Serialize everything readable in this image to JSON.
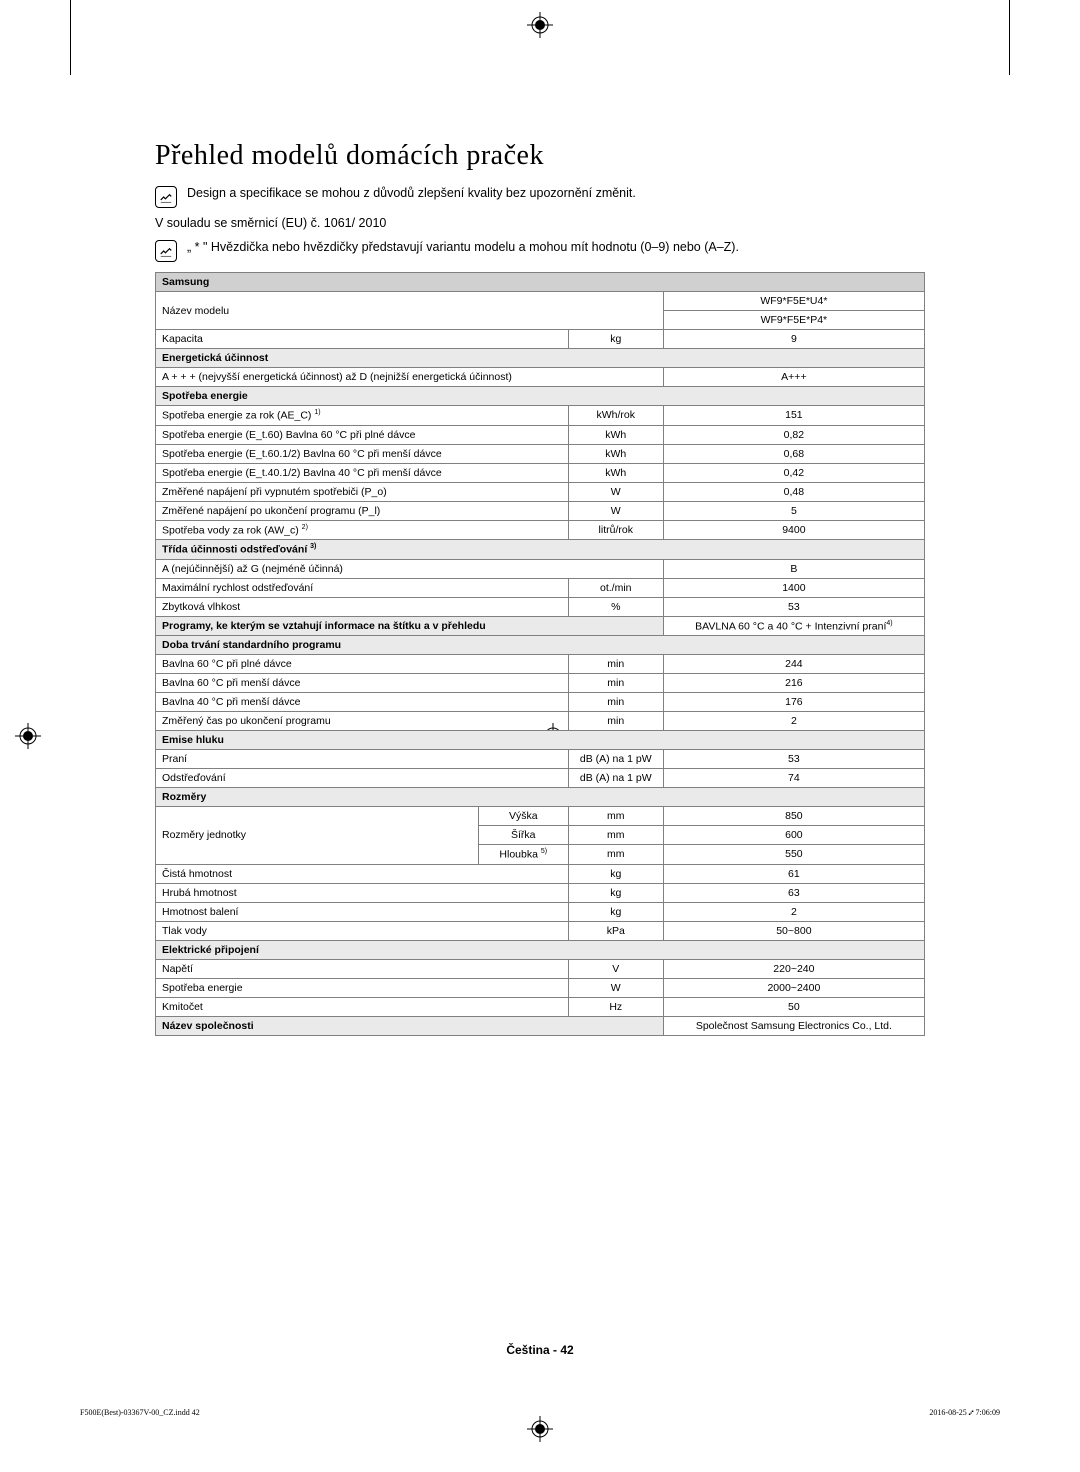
{
  "title": "Přehled modelů domácích praček",
  "note1": "Design a specifikace se mohou z důvodů zlepšení kvality bez upozornění změnit.",
  "regulation": "V souladu se směrnicí (EU) č. 1061/ 2010",
  "note2": "„ * \" Hvězdička nebo hvězdičky představují variantu modelu a mohou mít hodnotu (0–9) nebo (A–Z).",
  "brand": "Samsung",
  "model_label": "Název modelu",
  "model_val1": "WF9*F5E*U4*",
  "model_val2": "WF9*F5E*P4*",
  "capacity_label": "Kapacita",
  "capacity_unit": "kg",
  "capacity_val": "9",
  "energy_eff_hdr": "Energetická účinnost",
  "energy_class_label": "A + + + (nejvyšší energetická účinnost) až D (nejnižší energetická účinnost)",
  "energy_class_val": "A+++",
  "consumption_hdr": "Spotřeba energie",
  "rows_energy": [
    {
      "label": "Spotřeba energie za rok (AE_C) ",
      "sup": "1)",
      "unit": "kWh/rok",
      "val": "151"
    },
    {
      "label": "Spotřeba energie (E_t.60) Bavlna 60 °C při plné dávce",
      "sup": "",
      "unit": "kWh",
      "val": "0,82"
    },
    {
      "label": "Spotřeba energie (E_t.60.1/2) Bavlna 60 °C při menší dávce",
      "sup": "",
      "unit": "kWh",
      "val": "0,68"
    },
    {
      "label": "Spotřeba energie (E_t.40.1/2) Bavlna 40 °C při menší dávce",
      "sup": "",
      "unit": "kWh",
      "val": "0,42"
    },
    {
      "label": "Změřené napájení při vypnutém spotřebiči (P_o)",
      "sup": "",
      "unit": "W",
      "val": "0,48"
    },
    {
      "label": "Změřené napájení po ukončení programu (P_l)",
      "sup": "",
      "unit": "W",
      "val": "5"
    },
    {
      "label": "Spotřeba vody za rok (AW_c) ",
      "sup": "2)",
      "unit": "litrů/rok",
      "val": "9400"
    }
  ],
  "spin_hdr": "Třída účinnosti odstřeďování ",
  "spin_hdr_sup": "3)",
  "spin_class_label": "A (nejúčinnější) až G (nejméně účinná)",
  "spin_class_val": "B",
  "spin_speed_label": "Maximální rychlost odstřeďování",
  "spin_speed_unit": "ot./min",
  "spin_speed_val": "1400",
  "moisture_label": "Zbytková vlhkost",
  "moisture_unit": "%",
  "moisture_val": "53",
  "programs_label": "Programy, ke kterým se vztahují informace na štítku a v přehledu",
  "programs_val": "BAVLNA 60 °C a  40 °C + Intenzivní praní",
  "programs_sup": "4)",
  "duration_hdr": "Doba trvání standardního programu",
  "rows_duration": [
    {
      "label": "Bavlna 60 °C při plné dávce",
      "unit": "min",
      "val": "244"
    },
    {
      "label": "Bavlna 60 °C při menší dávce",
      "unit": "min",
      "val": "216"
    },
    {
      "label": "Bavlna 40 °C při menší dávce",
      "unit": "min",
      "val": "176"
    },
    {
      "label": "Změřený čas po ukončení programu",
      "unit": "min",
      "val": "2"
    }
  ],
  "noise_hdr": "Emise hluku",
  "noise_wash_label": "Praní",
  "noise_spin_label": "Odstřeďování",
  "noise_unit": "dB (A) na 1 pW",
  "noise_wash_val": "53",
  "noise_spin_val": "74",
  "dims_hdr": "Rozměry",
  "dims_label": "Rozměry jednotky",
  "dim_h": "Výška",
  "dim_h_unit": "mm",
  "dim_h_val": "850",
  "dim_w": "Šířka",
  "dim_w_unit": "mm",
  "dim_w_val": "600",
  "dim_d": "Hloubka ",
  "dim_d_sup": "5)",
  "dim_d_unit": "mm",
  "dim_d_val": "550",
  "rows_weight": [
    {
      "label": "Čistá hmotnost",
      "unit": "kg",
      "val": "61"
    },
    {
      "label": "Hrubá hmotnost",
      "unit": "kg",
      "val": "63"
    },
    {
      "label": "Hmotnost balení",
      "unit": "kg",
      "val": "2"
    },
    {
      "label": "Tlak vody",
      "unit": "kPa",
      "val": "50~800"
    }
  ],
  "elec_hdr": "Elektrické připojení",
  "rows_elec": [
    {
      "label": "Napětí",
      "unit": "V",
      "val": "220~240"
    },
    {
      "label": "Spotřeba energie",
      "unit": "W",
      "val": "2000~2400"
    },
    {
      "label": "Kmitočet",
      "unit": "Hz",
      "val": "50"
    }
  ],
  "company_label": "Název společnosti",
  "company_val": "Společnost Samsung Electronics Co., Ltd.",
  "footer_lang": "Čeština - 42",
  "footer_left": "F500E(Best)-03367V-00_CZ.indd   42",
  "footer_right": "2016-08-25   ⑇ 7:06:09"
}
